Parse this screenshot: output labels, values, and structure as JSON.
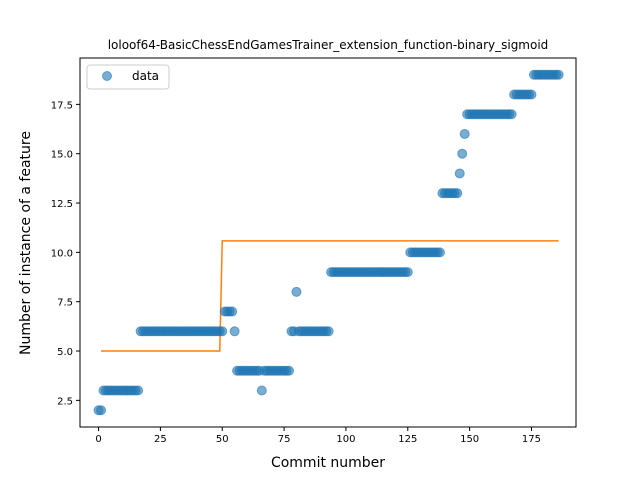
{
  "chart_data": {
    "type": "scatter",
    "title": "loloof64-BasicChessEndGamesTrainer_extension_function-binary_sigmoid",
    "xlabel": "Commit number",
    "ylabel": "Number of instance of a feature",
    "xlim": [
      -7.5,
      193
    ],
    "ylim": [
      1.15,
      19.85
    ],
    "xticks": [
      0,
      25,
      50,
      75,
      100,
      125,
      150,
      175
    ],
    "yticks": [
      2.5,
      5.0,
      7.5,
      10.0,
      12.5,
      15.0,
      17.5
    ],
    "ytick_labels": [
      "2.5",
      "5.0",
      "7.5",
      "10.0",
      "12.5",
      "15.0",
      "17.5"
    ],
    "legend": {
      "position": "upper-left",
      "entries": [
        "data"
      ]
    },
    "colors": {
      "data": "#1f77b4",
      "fit": "#ff7f0e"
    },
    "series": [
      {
        "name": "data",
        "kind": "scatter",
        "segments": [
          {
            "x_from": 0,
            "x_to": 1,
            "y": 2
          },
          {
            "x_from": 2,
            "x_to": 16,
            "y": 3
          },
          {
            "x_from": 17,
            "x_to": 50,
            "y": 6
          },
          {
            "x_from": 51,
            "x_to": 54,
            "y": 7
          },
          {
            "x_from": 55,
            "x_to": 55,
            "y": 6
          },
          {
            "x_from": 56,
            "x_to": 65,
            "y": 4
          },
          {
            "x_from": 66,
            "x_to": 66,
            "y": 3
          },
          {
            "x_from": 67,
            "x_to": 77,
            "y": 4
          },
          {
            "x_from": 78,
            "x_to": 79,
            "y": 6
          },
          {
            "x_from": 80,
            "x_to": 80,
            "y": 8
          },
          {
            "x_from": 81,
            "x_to": 93,
            "y": 6
          },
          {
            "x_from": 94,
            "x_to": 125,
            "y": 9
          },
          {
            "x_from": 126,
            "x_to": 138,
            "y": 10
          },
          {
            "x_from": 139,
            "x_to": 145,
            "y": 13
          },
          {
            "x_from": 146,
            "x_to": 146,
            "y": 14
          },
          {
            "x_from": 147,
            "x_to": 147,
            "y": 15
          },
          {
            "x_from": 148,
            "x_to": 148,
            "y": 16
          },
          {
            "x_from": 149,
            "x_to": 167,
            "y": 17
          },
          {
            "x_from": 168,
            "x_to": 175,
            "y": 18
          },
          {
            "x_from": 176,
            "x_to": 186,
            "y": 19
          }
        ]
      },
      {
        "name": "fit",
        "kind": "line",
        "x": [
          1,
          49,
          50,
          51,
          186
        ],
        "y": [
          5.0,
          5.0,
          10.58,
          10.58,
          10.58
        ]
      }
    ]
  }
}
